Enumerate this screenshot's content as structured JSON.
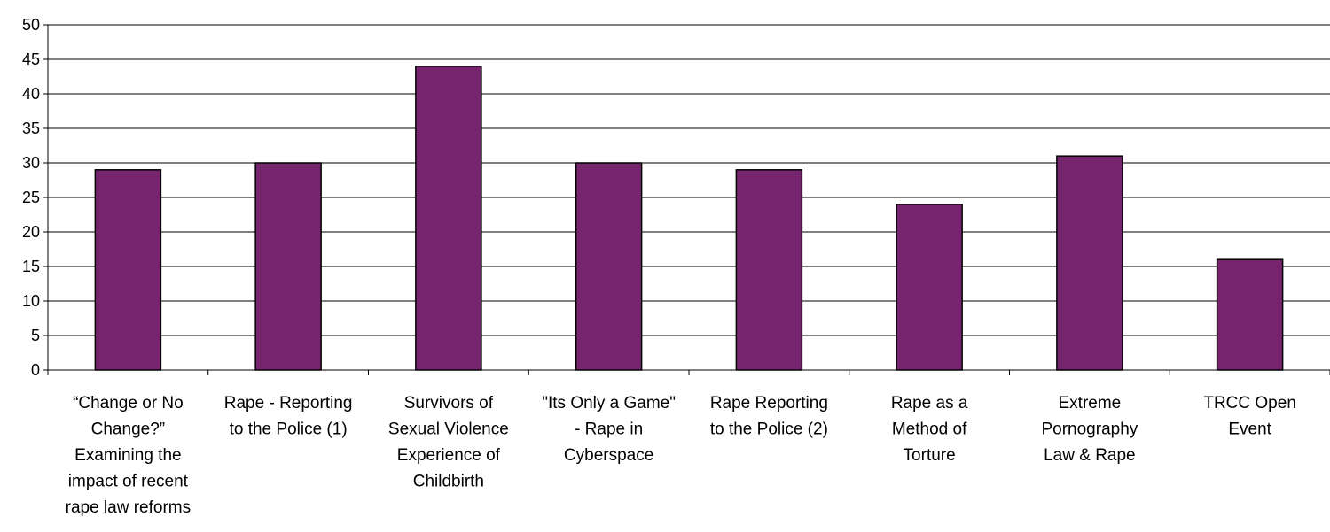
{
  "chart_data": {
    "type": "bar",
    "title": "",
    "xlabel": "",
    "ylabel": "",
    "ylim": [
      0,
      50
    ],
    "yticks": [
      0,
      5,
      10,
      15,
      20,
      25,
      30,
      35,
      40,
      45,
      50
    ],
    "grid": true,
    "legend": "none",
    "bar_color": "#77246f",
    "categories": [
      [
        "“Change or No",
        "Change?”",
        "Examining the",
        "impact of recent",
        "rape law  reforms"
      ],
      [
        "Rape - Reporting",
        "to the Police (1)"
      ],
      [
        "Survivors of",
        "Sexual Violence",
        "Experience of",
        "Childbirth"
      ],
      [
        "\"Its Only a Game\"",
        "- Rape in",
        "Cyberspace"
      ],
      [
        "Rape Reporting",
        "to the Police (2)"
      ],
      [
        "Rape as a",
        "Method of",
        "Torture"
      ],
      [
        "Extreme",
        "Pornography",
        "Law  & Rape"
      ],
      [
        "TRCC Open",
        "Event"
      ]
    ],
    "values": [
      29,
      30,
      44,
      30,
      29,
      24,
      31,
      16
    ]
  }
}
